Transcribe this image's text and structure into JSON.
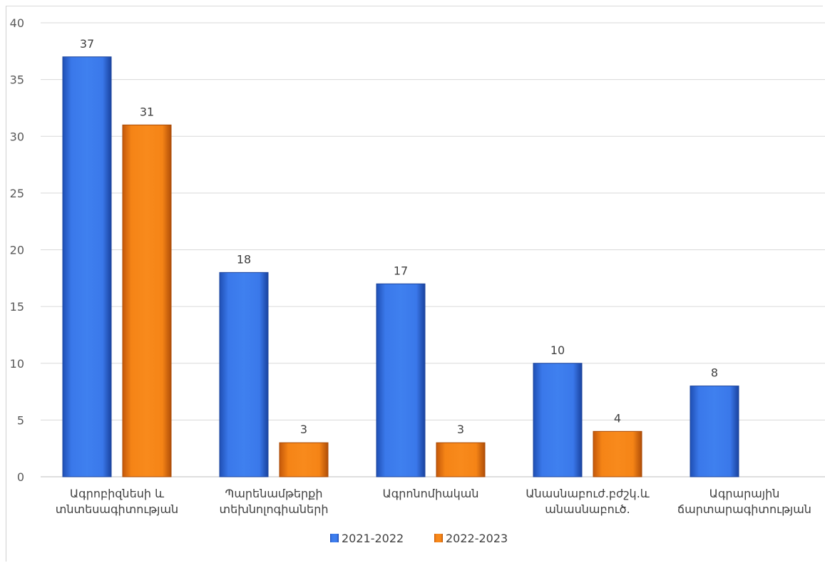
{
  "chart_data": {
    "type": "bar",
    "title": "",
    "xlabel": "",
    "ylabel": "",
    "ylim": [
      0,
      40
    ],
    "yticks": [
      0,
      5,
      10,
      15,
      20,
      25,
      30,
      35,
      40
    ],
    "grid": true,
    "legend_position": "bottom",
    "categories": [
      [
        "Ագրոբիզնեսի և",
        "տնտեսագիտության"
      ],
      [
        "Պարենամթերքի",
        "տեխնոլոգիաների"
      ],
      [
        "Ագրոնոմիական"
      ],
      [
        "Անասնաբուժ.բժշկ.և",
        "անասնաբուծ."
      ],
      [
        "Ագրարային",
        "ճարտարագիտության"
      ]
    ],
    "series": [
      {
        "name": "2021-2022",
        "color": "#2e6ae0",
        "values": [
          37,
          18,
          17,
          10,
          8
        ]
      },
      {
        "name": "2022-2023",
        "color": "#f07a12",
        "values": [
          31,
          3,
          3,
          4,
          null
        ]
      }
    ]
  }
}
